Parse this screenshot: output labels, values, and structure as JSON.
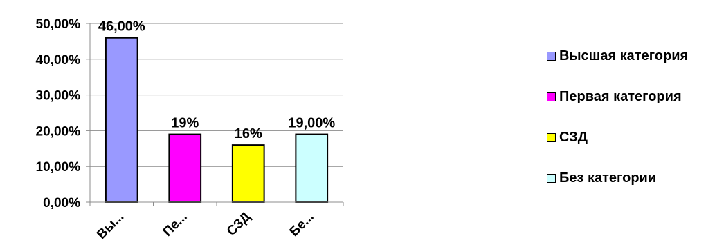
{
  "chart_data": {
    "type": "bar",
    "categories": [
      "Вы...",
      "Пе...",
      "СЗД",
      "Бе..."
    ],
    "values": [
      46,
      19,
      16,
      19
    ],
    "data_labels": [
      "46,00%",
      "19%",
      "16%",
      "19,00%"
    ],
    "colors": [
      "#9999ff",
      "#ff00ff",
      "#ffff00",
      "#ccffff"
    ],
    "ylim": [
      0,
      50
    ],
    "y_ticks": [
      0,
      10,
      20,
      30,
      40,
      50
    ],
    "y_tick_labels": [
      "0,00%",
      "10,00%",
      "20,00%",
      "30,00%",
      "40,00%",
      "50,00%"
    ],
    "grid": true,
    "legend_position": "right",
    "legend": [
      {
        "label": "Высшая категория",
        "color": "#9999ff"
      },
      {
        "label": "Первая категория",
        "color": "#ff00ff"
      },
      {
        "label": "СЗД",
        "color": "#ffff00"
      },
      {
        "label": "Без категории",
        "color": "#ccffff"
      }
    ]
  }
}
